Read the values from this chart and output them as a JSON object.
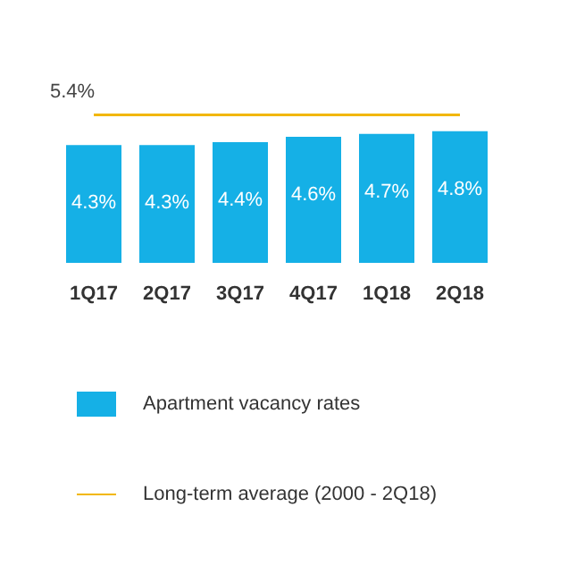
{
  "chart_data": {
    "type": "bar",
    "categories": [
      "1Q17",
      "2Q17",
      "3Q17",
      "4Q17",
      "1Q18",
      "2Q18"
    ],
    "series": [
      {
        "name": "Apartment vacancy rates",
        "color": "#15b0e6",
        "values": [
          4.3,
          4.3,
          4.4,
          4.6,
          4.7,
          4.8
        ],
        "value_labels": [
          "4.3%",
          "4.3%",
          "4.4%",
          "4.6%",
          "4.7%",
          "4.8%"
        ]
      },
      {
        "name": "Long-term average (2000 - 2Q18)",
        "type": "line",
        "color": "#f2b705",
        "marker": "none",
        "values": [
          5.4,
          5.4,
          5.4,
          5.4,
          5.4,
          5.4
        ],
        "value_labels": [
          "5.4%",
          null,
          null,
          null,
          null,
          null
        ]
      }
    ],
    "legend": "bottom"
  }
}
